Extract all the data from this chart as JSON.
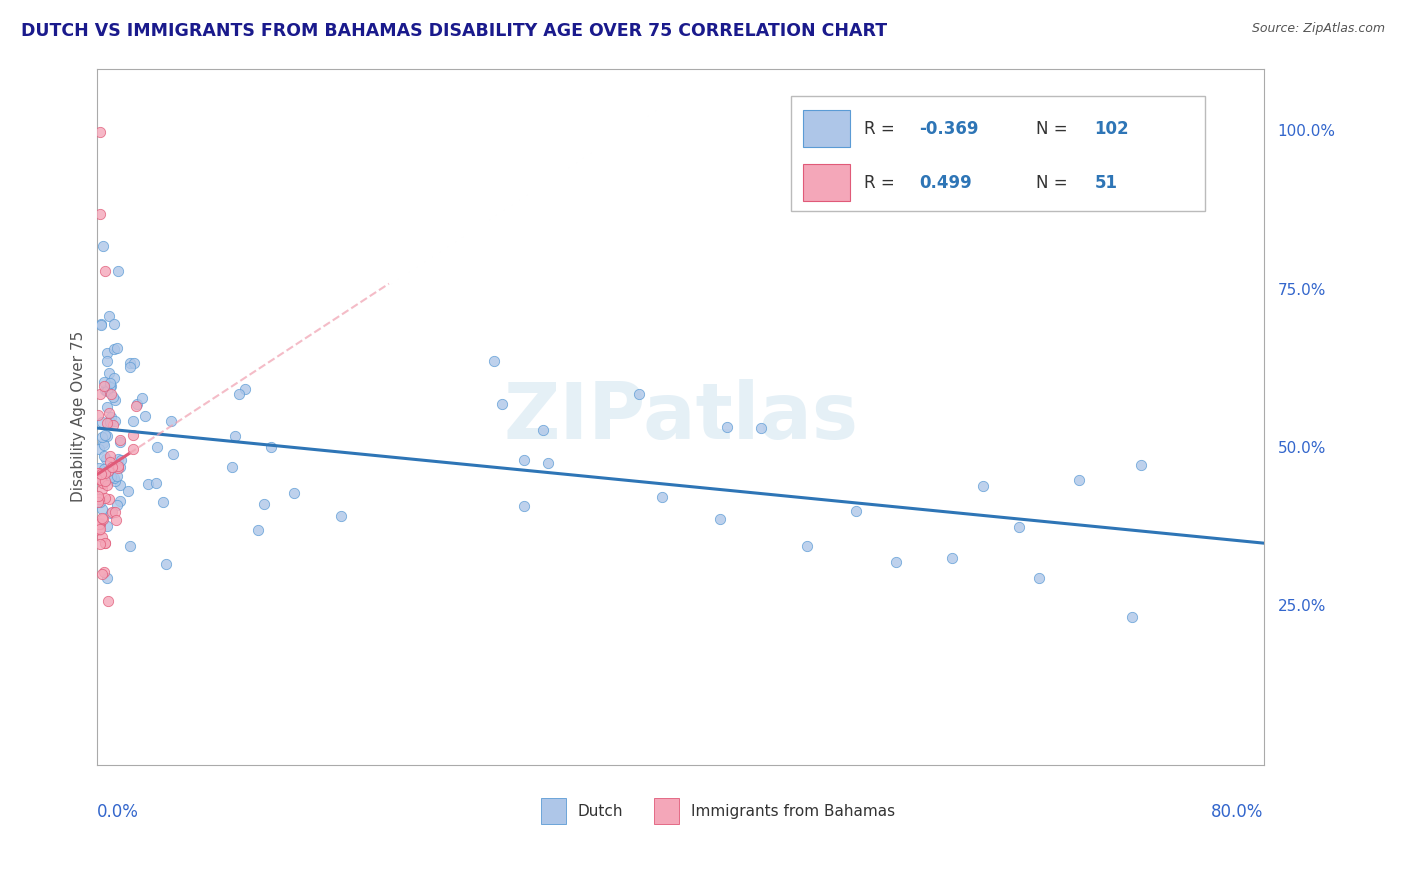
{
  "title": "DUTCH VS IMMIGRANTS FROM BAHAMAS DISABILITY AGE OVER 75 CORRELATION CHART",
  "source": "Source: ZipAtlas.com",
  "ylabel": "Disability Age Over 75",
  "right_yticks": [
    "100.0%",
    "75.0%",
    "50.0%",
    "25.0%"
  ],
  "right_ytick_vals": [
    1.0,
    0.75,
    0.5,
    0.25
  ],
  "xlim": [
    0.0,
    0.8
  ],
  "ylim": [
    0.0,
    1.1
  ],
  "dutch_color": "#aec6e8",
  "bahamas_color": "#f4a7b9",
  "dutch_edge_color": "#5b9bd5",
  "bahamas_edge_color": "#e05a78",
  "dutch_line_color": "#2e75b6",
  "bahamas_line_color": "#e05a78",
  "bahamas_dash_color": "#f0a0b0",
  "legend_text_color": "#333333",
  "legend_value_color": "#2e75b6",
  "dutch_R": "-0.369",
  "dutch_N": "102",
  "bahamas_R": "0.499",
  "bahamas_N": "51",
  "watermark": "ZIPatlas",
  "title_color": "#1a1a8c",
  "source_color": "#555555",
  "axis_label_color": "#3366cc",
  "ylabel_color": "#555555",
  "grid_color": "#cccccc"
}
